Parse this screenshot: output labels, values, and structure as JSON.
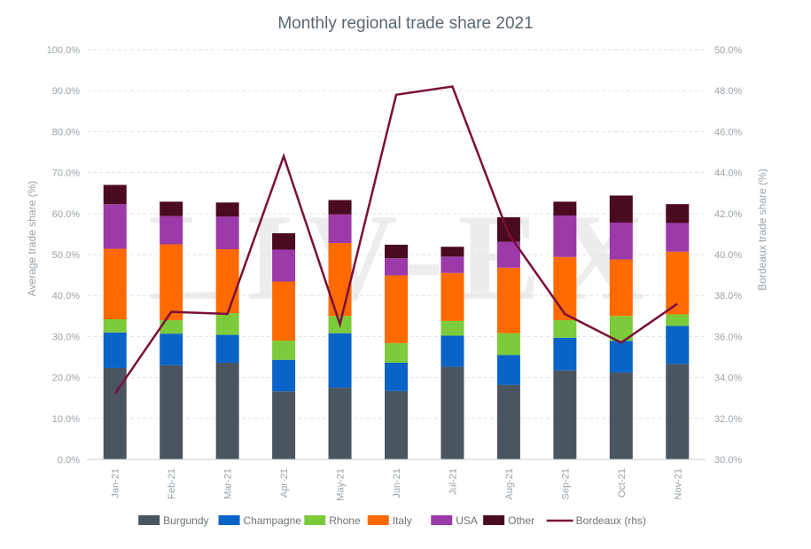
{
  "chart_data": {
    "type": "bar",
    "stacked": true,
    "title": "Monthly regional trade share 2021",
    "watermark": "LIV-EX",
    "ylabel": "Average trade share (%)",
    "y2label": "Bordeaux trade share (%)",
    "ylim": [
      0,
      100
    ],
    "y2lim": [
      30,
      50
    ],
    "yticks": [
      "0.0%",
      "10.0%",
      "20.0%",
      "30.0%",
      "40.0%",
      "50.0%",
      "60.0%",
      "70.0%",
      "80.0%",
      "90.0%",
      "100.0%"
    ],
    "y2ticks": [
      "30.0%",
      "32.0%",
      "34.0%",
      "36.0%",
      "38.0%",
      "40.0%",
      "42.0%",
      "44.0%",
      "46.0%",
      "48.0%",
      "50.0%"
    ],
    "categories": [
      "Jan-21",
      "Feb-21",
      "Mar-21",
      "Apr-21",
      "May-21",
      "Jun-21",
      "Jul-21",
      "Aug-21",
      "Sep-21",
      "Oct-21",
      "Nov-21"
    ],
    "series": [
      {
        "name": "Burgundy",
        "color": "#4a5560",
        "values": [
          22.3,
          23.0,
          23.6,
          16.6,
          17.5,
          16.7,
          22.6,
          18.2,
          21.7,
          21.2,
          23.3
        ]
      },
      {
        "name": "Champagne",
        "color": "#0a64c8",
        "values": [
          8.7,
          7.7,
          6.8,
          7.7,
          13.3,
          6.9,
          7.6,
          7.3,
          8.0,
          7.7,
          9.3
        ]
      },
      {
        "name": "Rhone",
        "color": "#7ccb3a",
        "values": [
          3.2,
          3.3,
          5.3,
          4.7,
          4.2,
          4.8,
          3.6,
          5.3,
          4.3,
          6.1,
          2.8
        ]
      },
      {
        "name": "Italy",
        "color": "#ff6a00",
        "values": [
          17.2,
          18.5,
          15.6,
          14.4,
          17.8,
          16.5,
          11.7,
          16.0,
          15.4,
          13.8,
          15.3
        ]
      },
      {
        "name": "USA",
        "color": "#9b3aa8",
        "values": [
          10.9,
          6.9,
          8.0,
          7.8,
          7.0,
          4.2,
          4.0,
          6.3,
          10.1,
          9.0,
          7.0
        ]
      },
      {
        "name": "Other",
        "color": "#4a0a20",
        "values": [
          4.7,
          3.5,
          3.4,
          4.0,
          3.5,
          3.3,
          2.4,
          6.0,
          3.4,
          6.6,
          4.6
        ]
      }
    ],
    "line_series": {
      "name": "Bordeaux (rhs)",
      "color": "#7a0f3a",
      "axis": "right",
      "values": [
        33.2,
        37.2,
        37.1,
        44.8,
        36.6,
        47.8,
        48.2,
        41.0,
        37.1,
        35.7,
        37.6
      ]
    },
    "grid": true,
    "legend_position": "bottom"
  }
}
